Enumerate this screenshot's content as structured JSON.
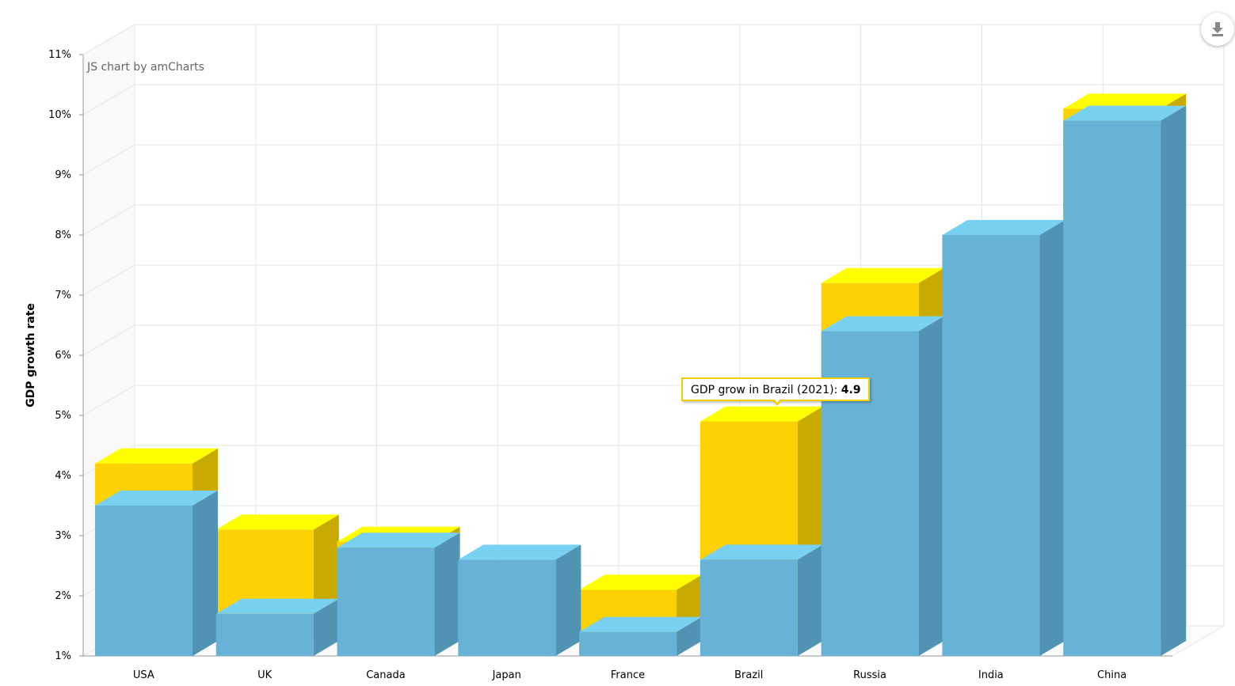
{
  "credit": "JS chart by amCharts",
  "export_icon": "download-icon",
  "colors": {
    "series_2020": "#67b2d7",
    "series_2021": "#fcd202"
  },
  "chart_data": {
    "type": "bar",
    "three_d": true,
    "ylabel": "GDP growth rate",
    "ylim": [
      1,
      11
    ],
    "yticks": [
      "1%",
      "2%",
      "3%",
      "4%",
      "5%",
      "6%",
      "7%",
      "8%",
      "9%",
      "10%",
      "11%"
    ],
    "grid": true,
    "categories": [
      "USA",
      "UK",
      "Canada",
      "Japan",
      "France",
      "Brazil",
      "Russia",
      "India",
      "China"
    ],
    "series": [
      {
        "key": "2020",
        "color": "#67b2d7",
        "values": [
          3.5,
          1.7,
          2.8,
          2.6,
          1.4,
          2.6,
          6.4,
          8.0,
          9.9
        ]
      },
      {
        "key": "2021",
        "color": "#fcd202",
        "values": [
          4.2,
          3.1,
          2.9,
          2.3,
          2.1,
          4.9,
          7.2,
          7.1,
          10.1
        ]
      }
    ]
  },
  "tooltip": {
    "text": "GDP grow in Brazil (2021): ",
    "value": "4.9"
  }
}
